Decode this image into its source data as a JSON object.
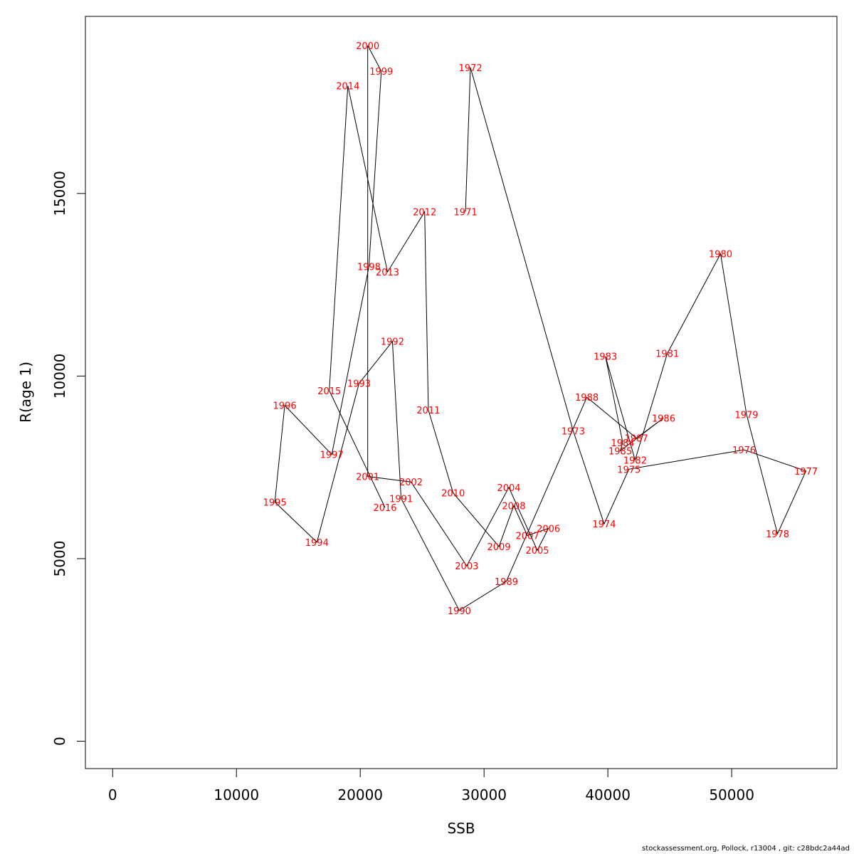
{
  "chart_data": {
    "type": "line",
    "xlabel": "SSB",
    "ylabel": "R(age 1)",
    "xlim": [
      -2200,
      58500
    ],
    "ylim": [
      -750,
      19850
    ],
    "xticks": [
      0,
      10000,
      20000,
      30000,
      40000,
      50000
    ],
    "yticks": [
      0,
      5000,
      10000,
      15000
    ],
    "line_color": "#000000",
    "label_color": "#ff0000",
    "points": [
      {
        "year": "1971",
        "x": 28500,
        "y": 14500
      },
      {
        "year": "1972",
        "x": 28900,
        "y": 18450
      },
      {
        "year": "1973",
        "x": 37200,
        "y": 8500
      },
      {
        "year": "1974",
        "x": 39700,
        "y": 5950
      },
      {
        "year": "1975",
        "x": 41700,
        "y": 7450
      },
      {
        "year": "1976",
        "x": 51000,
        "y": 7980
      },
      {
        "year": "1977",
        "x": 56000,
        "y": 7400
      },
      {
        "year": "1978",
        "x": 53700,
        "y": 5680
      },
      {
        "year": "1979",
        "x": 51200,
        "y": 8950
      },
      {
        "year": "1980",
        "x": 49100,
        "y": 13350
      },
      {
        "year": "1981",
        "x": 44800,
        "y": 10620
      },
      {
        "year": "1982",
        "x": 42200,
        "y": 7700
      },
      {
        "year": "1983",
        "x": 39800,
        "y": 10540
      },
      {
        "year": "1984",
        "x": 41200,
        "y": 8180
      },
      {
        "year": "1985",
        "x": 41000,
        "y": 7950
      },
      {
        "year": "1986",
        "x": 44500,
        "y": 8850
      },
      {
        "year": "1987",
        "x": 42300,
        "y": 8300
      },
      {
        "year": "1988",
        "x": 38300,
        "y": 9420
      },
      {
        "year": "1989",
        "x": 31800,
        "y": 4380
      },
      {
        "year": "1990",
        "x": 28000,
        "y": 3580
      },
      {
        "year": "1991",
        "x": 23300,
        "y": 6650
      },
      {
        "year": "1992",
        "x": 22600,
        "y": 10950
      },
      {
        "year": "1993",
        "x": 19900,
        "y": 9800
      },
      {
        "year": "1994",
        "x": 16500,
        "y": 5450
      },
      {
        "year": "1995",
        "x": 13100,
        "y": 6550
      },
      {
        "year": "1996",
        "x": 13900,
        "y": 9200
      },
      {
        "year": "1997",
        "x": 17700,
        "y": 7850
      },
      {
        "year": "1998",
        "x": 20700,
        "y": 13000
      },
      {
        "year": "1999",
        "x": 21700,
        "y": 18350
      },
      {
        "year": "2000",
        "x": 20600,
        "y": 19050
      },
      {
        "year": "2001",
        "x": 20600,
        "y": 7250
      },
      {
        "year": "2002",
        "x": 24100,
        "y": 7100
      },
      {
        "year": "2003",
        "x": 28600,
        "y": 4800
      },
      {
        "year": "2004",
        "x": 32000,
        "y": 6950
      },
      {
        "year": "2005",
        "x": 34300,
        "y": 5230
      },
      {
        "year": "2006",
        "x": 35200,
        "y": 5830
      },
      {
        "year": "2007",
        "x": 33500,
        "y": 5630
      },
      {
        "year": "2008",
        "x": 32400,
        "y": 6450
      },
      {
        "year": "2009",
        "x": 31200,
        "y": 5330
      },
      {
        "year": "2010",
        "x": 27500,
        "y": 6800
      },
      {
        "year": "2011",
        "x": 25500,
        "y": 9070
      },
      {
        "year": "2012",
        "x": 25200,
        "y": 14500
      },
      {
        "year": "2013",
        "x": 22200,
        "y": 12850
      },
      {
        "year": "2014",
        "x": 19000,
        "y": 17950
      },
      {
        "year": "2015",
        "x": 17500,
        "y": 9600
      },
      {
        "year": "2016",
        "x": 22000,
        "y": 6400
      }
    ]
  },
  "footer": {
    "text": "stockassessment.org, Pollock, r13004 , git: c28bdc2a44ad"
  }
}
